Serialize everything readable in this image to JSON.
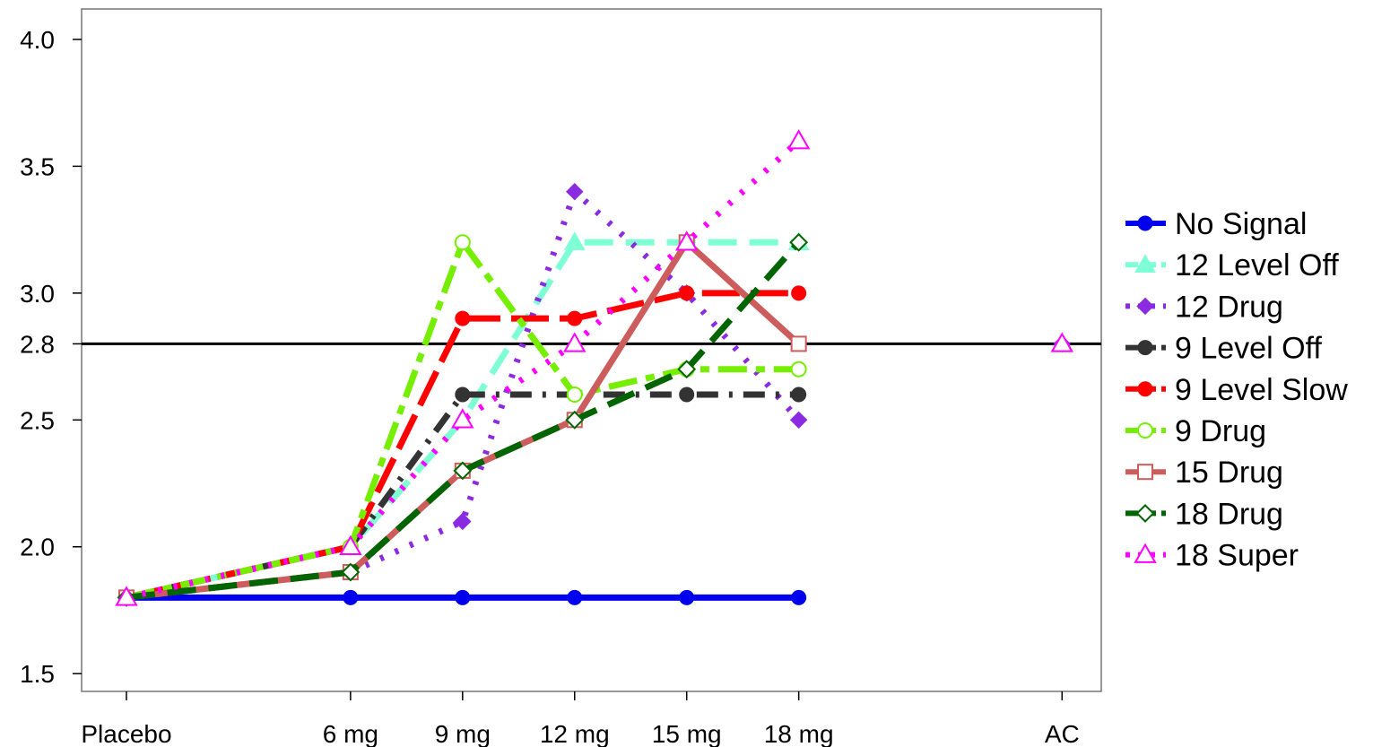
{
  "chart_data": {
    "type": "line",
    "title": "",
    "xlabel": "",
    "ylabel": "",
    "categories": [
      "Placebo",
      "6 mg",
      "9 mg",
      "12 mg",
      "15 mg",
      "18 mg",
      "AC"
    ],
    "x_positions": [
      0,
      2,
      3,
      4,
      5,
      6,
      8.35
    ],
    "xlim": [
      -0.4,
      8.7
    ],
    "ylim": [
      1.43,
      4.12
    ],
    "yticks": [
      1.5,
      2.0,
      2.5,
      2.8,
      3.0,
      3.5,
      4.0
    ],
    "ytick_labels": [
      "1.5",
      "2.0",
      "2.5",
      "2.8",
      "3.0",
      "3.5",
      "4.0"
    ],
    "reference_line": {
      "y": 2.8,
      "color": "#000000"
    },
    "grid": false,
    "legend_position": "right",
    "series": [
      {
        "name": "No Signal",
        "color": "#0000ee",
        "dash": "solid",
        "width": 7,
        "marker": "circle-filled",
        "values": [
          1.8,
          1.8,
          1.8,
          1.8,
          1.8,
          1.8,
          null
        ]
      },
      {
        "name": "12 Level Off",
        "color": "#7fffd4",
        "dash": "long",
        "width": 7,
        "marker": "triangle-filled",
        "values": [
          1.8,
          2.0,
          2.5,
          3.2,
          3.2,
          3.2,
          null
        ]
      },
      {
        "name": "12 Drug",
        "color": "#8a2be2",
        "dash": "dot",
        "width": 7,
        "marker": "diamond-filled",
        "values": [
          1.8,
          1.9,
          2.1,
          3.4,
          3.0,
          2.5,
          2.8
        ]
      },
      {
        "name": "9 Level Off",
        "color": "#333333",
        "dash": "dotdash",
        "width": 7,
        "marker": "circle-filled",
        "values": [
          1.8,
          2.0,
          2.6,
          2.6,
          2.6,
          2.6,
          null
        ]
      },
      {
        "name": "9 Level Slow",
        "color": "#ff0000",
        "dash": "longdash",
        "width": 7,
        "marker": "circle-filled",
        "values": [
          1.8,
          2.0,
          2.9,
          2.9,
          3.0,
          3.0,
          null
        ]
      },
      {
        "name": "9 Drug",
        "color": "#76ee00",
        "dash": "twodash",
        "width": 7,
        "marker": "circle-open",
        "values": [
          1.8,
          2.0,
          3.2,
          2.6,
          2.7,
          2.7,
          null
        ]
      },
      {
        "name": "15 Drug",
        "color": "#cd5c5c",
        "dash": "solid",
        "width": 7,
        "marker": "square-open",
        "values": [
          1.8,
          1.9,
          2.3,
          2.5,
          3.2,
          2.8,
          null
        ]
      },
      {
        "name": "18 Drug",
        "color": "#006400",
        "dash": "long",
        "width": 7,
        "marker": "diamond-open",
        "values": [
          1.8,
          1.9,
          2.3,
          2.5,
          2.7,
          3.2,
          null
        ]
      },
      {
        "name": "18 Super",
        "color": "#ff00ff",
        "dash": "dot",
        "width": 7,
        "marker": "triangle-open",
        "values": [
          1.8,
          2.0,
          2.5,
          2.8,
          3.2,
          3.6,
          2.8
        ]
      }
    ]
  }
}
